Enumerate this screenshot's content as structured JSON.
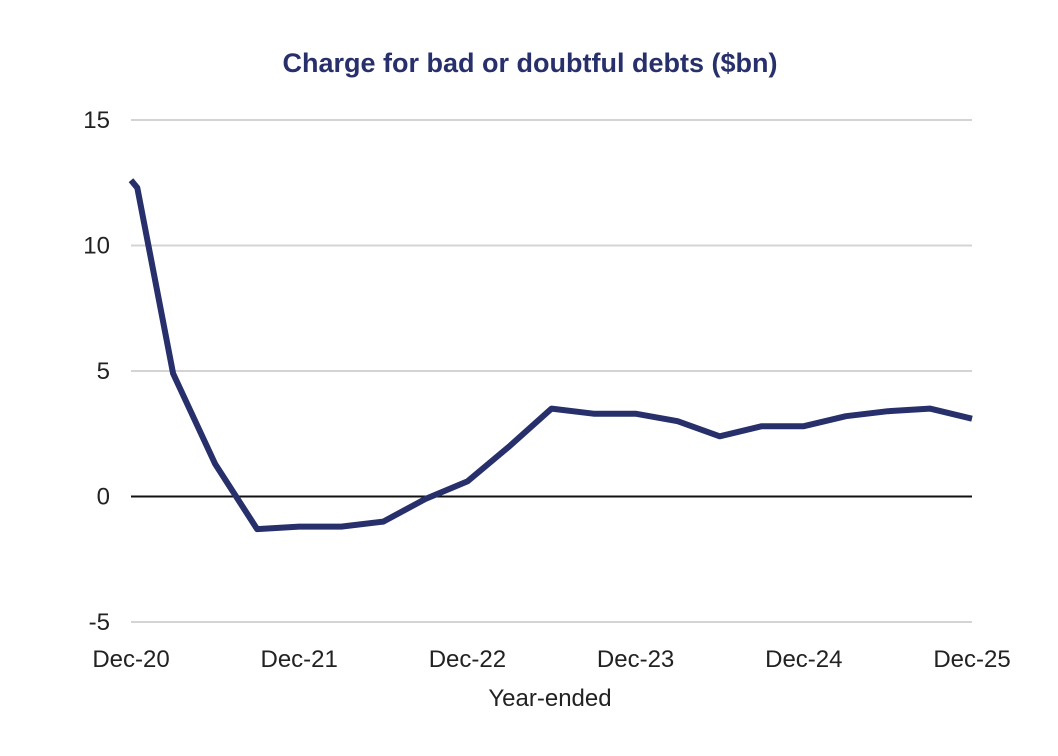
{
  "chart_data": {
    "type": "line",
    "title": "Charge for bad or doubtful debts ($bn)",
    "xlabel": "Year-ended",
    "ylabel": "",
    "ylim": [
      -5,
      15
    ],
    "yticks": [
      15,
      10,
      5,
      0,
      -5
    ],
    "xlim": [
      0,
      20
    ],
    "x_ticks": [
      {
        "label": "Dec-20",
        "x": 0
      },
      {
        "label": "Dec-21",
        "x": 4
      },
      {
        "label": "Dec-22",
        "x": 8
      },
      {
        "label": "Dec-23",
        "x": 12
      },
      {
        "label": "Dec-24",
        "x": 16
      },
      {
        "label": "Dec-25",
        "x": 20
      }
    ],
    "grid": true,
    "series": [
      {
        "color": "#27306b",
        "x": [
          0,
          0.15,
          1,
          2,
          3,
          4,
          5,
          6,
          7,
          8,
          9,
          10,
          11,
          12,
          13,
          14,
          15,
          16,
          17,
          18,
          19,
          20
        ],
        "values": [
          12.6,
          12.3,
          4.9,
          1.3,
          -1.3,
          -1.2,
          -1.2,
          -1.0,
          -0.1,
          0.6,
          2.0,
          3.5,
          3.3,
          3.3,
          3.0,
          2.4,
          2.8,
          2.8,
          3.2,
          3.4,
          3.5,
          3.1
        ]
      }
    ]
  }
}
